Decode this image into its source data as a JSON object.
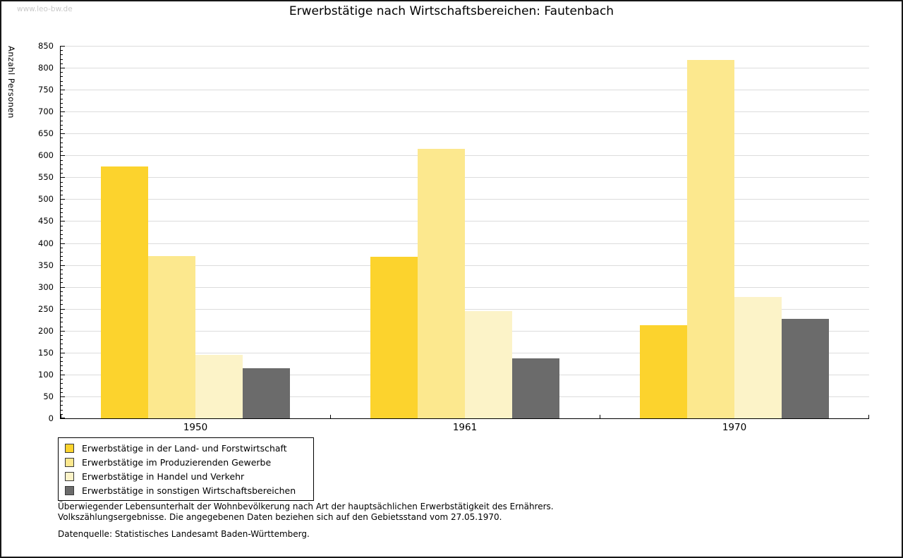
{
  "page": {
    "watermark": "www.leo-bw.de"
  },
  "chart_data": {
    "type": "bar",
    "title": "Erwerbstätige nach Wirtschaftsbereichen: Fautenbach",
    "xlabel": "",
    "ylabel": "Anzahl Personen",
    "categories": [
      "1950",
      "1961",
      "1970"
    ],
    "series": [
      {
        "name": "Erwerbstätige in der Land- und Forstwirtschaft",
        "color": "#FCD32D",
        "values": [
          575,
          369,
          212
        ]
      },
      {
        "name": "Erwerbstätige im Produzierenden Gewerbe",
        "color": "#FCE88E",
        "values": [
          371,
          615,
          818
        ]
      },
      {
        "name": "Erwerbstätige in Handel und Verkehr",
        "color": "#FCF3C8",
        "values": [
          145,
          244,
          277
        ]
      },
      {
        "name": "Erwerbstätige in sonstigen Wirtschaftsbereichen",
        "color": "#6B6B6B",
        "values": [
          115,
          137,
          227
        ]
      }
    ],
    "ylim": [
      0,
      850
    ],
    "ytick_step": 50,
    "yticks": [
      0,
      50,
      100,
      150,
      200,
      250,
      300,
      350,
      400,
      450,
      500,
      550,
      600,
      650,
      700,
      750,
      800,
      850
    ],
    "grid": "horizontal",
    "legend_position": "bottom-left",
    "colors": {
      "gridline": "#DCDCDC",
      "axis": "#000000",
      "watermark": "#C9C9C9"
    }
  },
  "footer": {
    "line1": "Überwiegender Lebensunterhalt der Wohnbevölkerung nach Art der hauptsächlichen Erwerbstätigkeit des Ernährers.",
    "line2": "Volkszählungsergebnisse. Die angegebenen Daten beziehen sich auf den Gebietsstand vom 27.05.1970.",
    "source": "Datenquelle: Statistisches Landesamt Baden-Württemberg."
  }
}
